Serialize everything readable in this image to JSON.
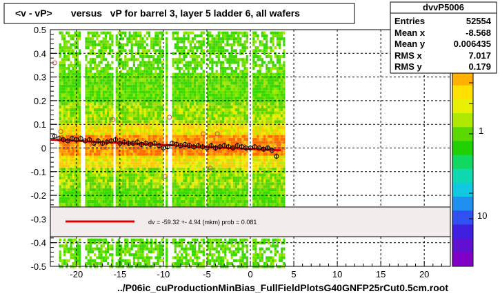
{
  "chart_data": {
    "type": "heatmap",
    "title": "<v - vP>       versus   vP for barrel 3, layer 5 ladder 6, all wafers",
    "xlabel": "../P06ic_cuProductionMinBias_FullFieldPlotsG40GNFP25rCut0.5cm.root",
    "ylabel": "",
    "xlim": [
      -23,
      23
    ],
    "ylim": [
      -0.5,
      0.5
    ],
    "x_ticks": [
      "-20",
      "-15",
      "-10",
      "-5",
      "0",
      "5",
      "10",
      "15",
      "20"
    ],
    "y_ticks": [
      "-0.5",
      "-0.4",
      "-0.3",
      "-0.2",
      "-0.1",
      "0",
      "0.1",
      "0.2",
      "0.3",
      "0.4",
      "0.5"
    ],
    "color_scale": {
      "labels": [
        "1",
        "10"
      ],
      "log": true
    },
    "stats": {
      "name": "dvvP5006",
      "rows": [
        {
          "label": "Entries",
          "value": "52554"
        },
        {
          "label": "Mean x",
          "value": "-8.568"
        },
        {
          "label": "Mean y",
          "value": "0.006435"
        },
        {
          "label": "RMS x",
          "value": "7.017"
        },
        {
          "label": "RMS y",
          "value": "0.179"
        }
      ]
    },
    "fit_legend": "dv =   -59.32 +-   4.94 (mkm) prob = 0.081",
    "fit_line": {
      "x": [
        -23,
        3.5
      ],
      "y": [
        0.035,
        -0.01
      ],
      "color": "#dd0000"
    },
    "profile_points": {
      "x": [
        -22.5,
        -22,
        -21.5,
        -21,
        -20.5,
        -20,
        -19.5,
        -19,
        -18.5,
        -18,
        -17.5,
        -17,
        -16.5,
        -16,
        -15.5,
        -15,
        -14.5,
        -14,
        -13.5,
        -13,
        -12.5,
        -12,
        -11.5,
        -11,
        -10.5,
        -10,
        -9.5,
        -9,
        -8.5,
        -8,
        -7.5,
        -7,
        -6.5,
        -6,
        -5.5,
        -5,
        -4.5,
        -4,
        -3.5,
        -3,
        -2.5,
        -2,
        -1.5,
        -1,
        -0.5,
        0,
        0.5,
        1,
        1.5,
        2,
        2.5,
        3
      ],
      "y": [
        0.05,
        0.04,
        0.035,
        0.03,
        0.04,
        0.035,
        0.04,
        0.03,
        0.035,
        0.02,
        0.03,
        0.02,
        0.025,
        0.03,
        0.035,
        0.02,
        0.025,
        0.02,
        0.02,
        0.025,
        0.015,
        0.02,
        0.015,
        0.02,
        0.01,
        0.0,
        0.005,
        0.02,
        0.015,
        0.01,
        0.015,
        0.01,
        0.005,
        0.01,
        0.005,
        0.0,
        0.01,
        0.0,
        0.005,
        0.01,
        0.005,
        0.0,
        0.01,
        0.005,
        0.0,
        0.0,
        0.005,
        0.0,
        -0.005,
        0.0,
        -0.01,
        -0.035
      ]
    },
    "outlier_points": {
      "x": [
        -22.5,
        -21.8,
        -15.8,
        -9.8,
        -9.3,
        -4.6,
        -5.4,
        -3.8
      ],
      "y": [
        0.36,
        0.07,
        0.12,
        -0.12,
        0.13,
        -0.085,
        0.06,
        0.06
      ]
    }
  }
}
